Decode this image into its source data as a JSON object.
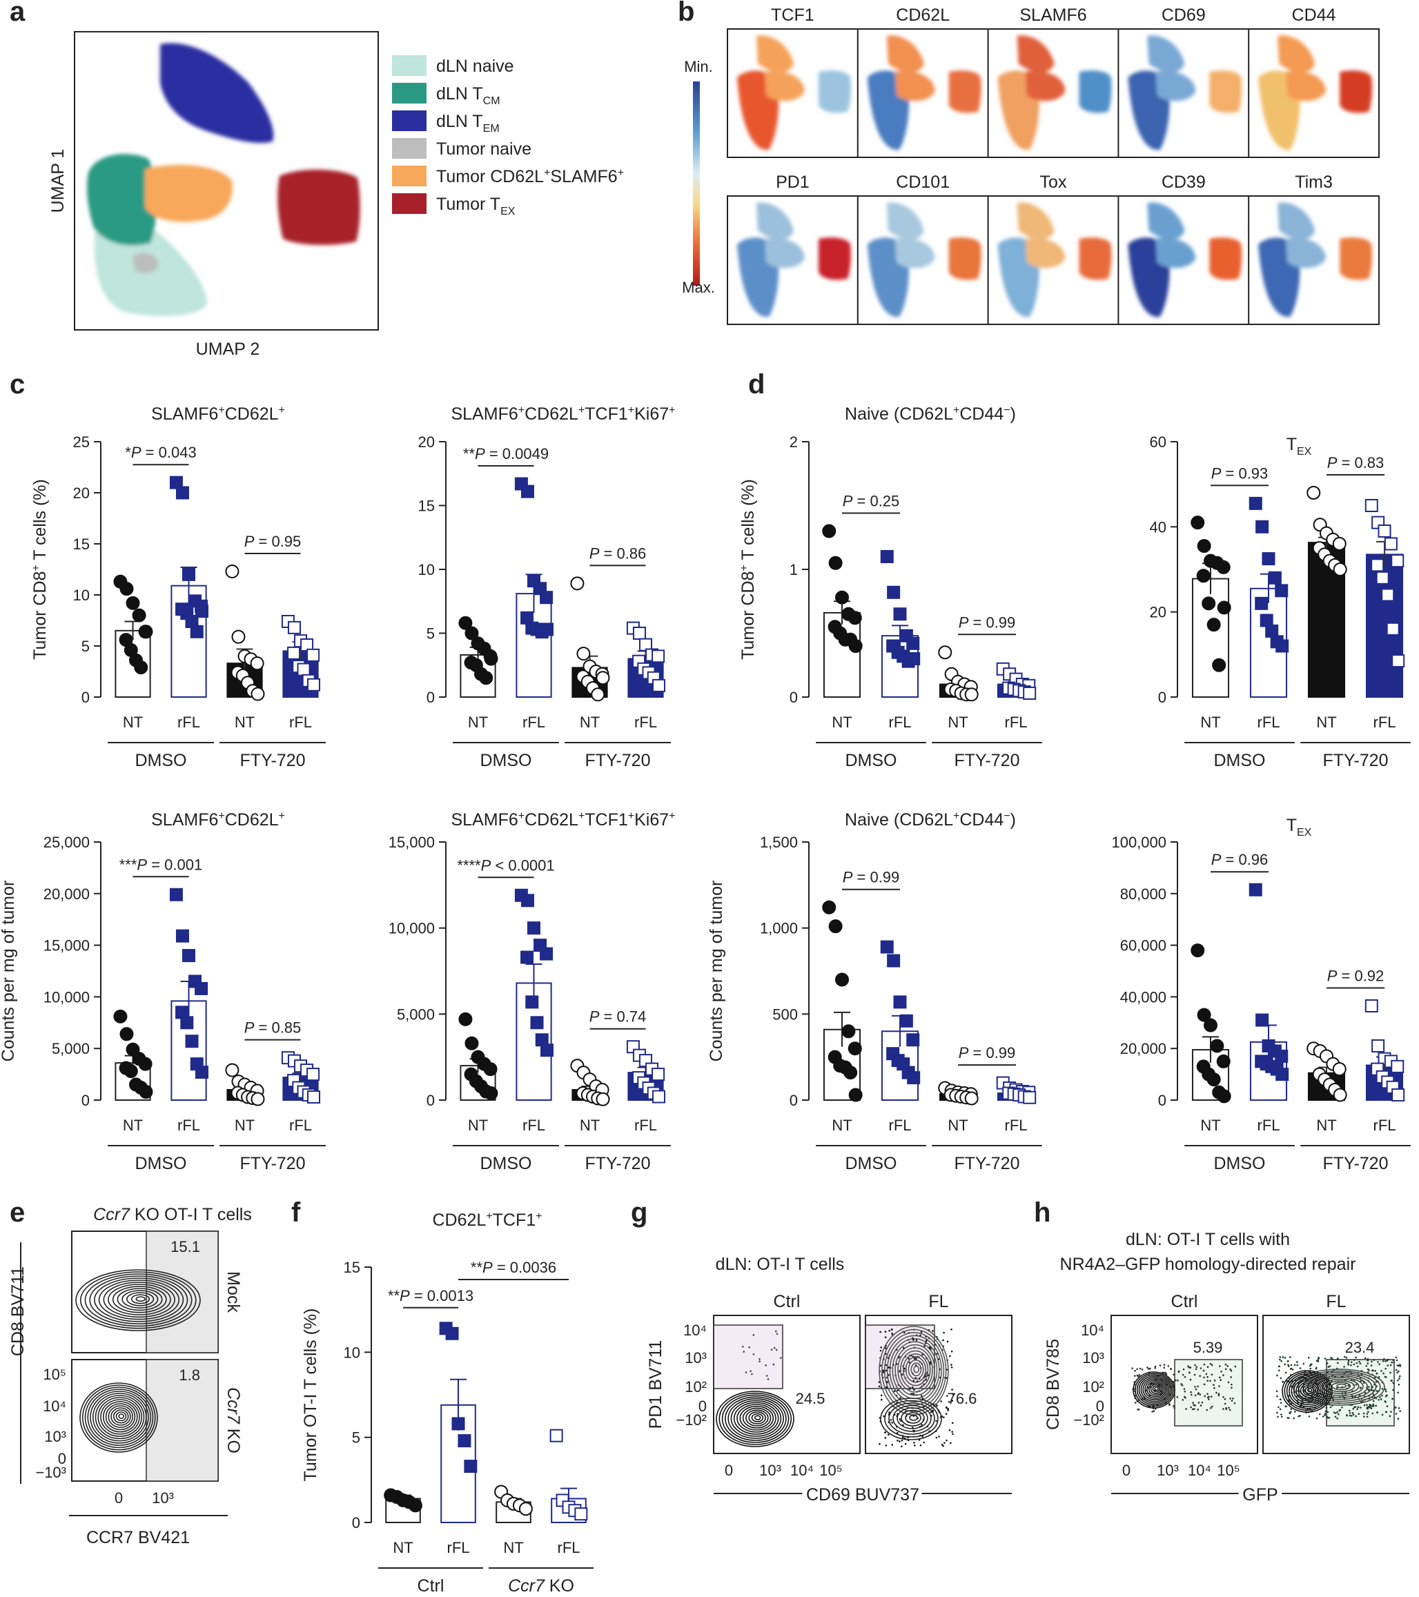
{
  "colors": {
    "dmso_rfl": "#1f2a8a",
    "fty_nt": "#111111",
    "gate_pd1": "#8b2a6b",
    "gate_gfp": "#2a7a55",
    "bar_nt_fill": "#ffffff",
    "bar_rfl_fill": "#ffffff"
  },
  "panel_letters": [
    "a",
    "b",
    "c",
    "d",
    "e",
    "f",
    "g",
    "h"
  ],
  "umap": {
    "ylabel": "UMAP 1",
    "xlabel": "UMAP 2",
    "legend": [
      {
        "label": "dLN naive",
        "color": "#bfe5dd"
      },
      {
        "label": "dLN T",
        "sub": "CM",
        "color": "#2a9a84"
      },
      {
        "label": "dLN T",
        "sub": "EM",
        "color": "#2a2fa0"
      },
      {
        "label": "Tumor naive",
        "color": "#bdbdbd"
      },
      {
        "label": "Tumor CD62L",
        "sup1": "+",
        "mid": "SLAMF6",
        "sup2": "+",
        "color": "#f7a85a"
      },
      {
        "label": "Tumor T",
        "sub": "EX",
        "color": "#a8202a"
      }
    ]
  },
  "heatmaps": {
    "markers_row1": [
      "TCF1",
      "CD62L",
      "SLAMF6",
      "CD69",
      "CD44"
    ],
    "markers_row2": [
      "PD1",
      "CD101",
      "Tox",
      "CD39",
      "Tim3"
    ],
    "scale_min": "Min.",
    "scale_max": "Max."
  },
  "groups": [
    "DMSO",
    "FTY-720"
  ],
  "categories": [
    "NT",
    "rFL",
    "NT",
    "rFL"
  ],
  "chart_data": [
    {
      "type": "bar",
      "id": "c1",
      "title": "SLAMF6",
      "title_sup1": "+",
      "title_mid": "CD62L",
      "title_sup2": "+",
      "ylabel": "Tumor CD8",
      "ylabel_sup": "+",
      "ylabel_tail": " T cells (%)",
      "ylim": [
        0,
        25
      ],
      "yticks": [
        "0",
        "5",
        "10",
        "15",
        "20",
        "25"
      ],
      "means": [
        6.5,
        10.9,
        3.3,
        4.5
      ],
      "sem": [
        0.9,
        1.8,
        1.4,
        0.9
      ],
      "points": [
        [
          11.3,
          10.6,
          9.2,
          8.0,
          6.4,
          5.6,
          4.6,
          3.6,
          2.9,
          6.4
        ],
        [
          21.0,
          20.0,
          12.0,
          9.4,
          8.9,
          8.6,
          8.2,
          7.4,
          6.4,
          8.4
        ],
        [
          12.3,
          5.9,
          4.0,
          3.7,
          3.3,
          2.4,
          2.1,
          1.4,
          0.6,
          0.3
        ],
        [
          7.4,
          6.8,
          5.5,
          5.1,
          4.1,
          4.3,
          3.0,
          2.7,
          1.6,
          1.2
        ]
      ],
      "pvals": [
        {
          "text": "*P = 0.043",
          "pair": [
            0,
            1
          ]
        },
        {
          "text": "P = 0.95",
          "pair": [
            2,
            3
          ]
        }
      ]
    },
    {
      "type": "bar",
      "id": "c2",
      "title": "SLAMF6",
      "title_sup1": "+",
      "title_mid": "CD62L",
      "title_sup2": "+",
      "title_mid2": "TCF1",
      "title_sup3": "+",
      "title_mid3": "Ki67",
      "title_sup4": "+",
      "ylabel": "",
      "ylim": [
        0,
        20
      ],
      "yticks": [
        "0",
        "5",
        "10",
        "15",
        "20"
      ],
      "means": [
        3.3,
        8.1,
        2.3,
        3.0
      ],
      "sem": [
        0.6,
        1.5,
        0.9,
        0.6
      ],
      "points": [
        [
          5.8,
          5.0,
          4.2,
          3.8,
          3.2,
          2.7,
          2.5,
          1.8,
          1.5,
          3.0
        ],
        [
          16.7,
          16.1,
          9.1,
          8.5,
          7.8,
          6.2,
          5.4,
          5.3,
          5.1,
          5.3
        ],
        [
          8.9,
          3.4,
          2.4,
          2.0,
          1.8,
          1.6,
          1.2,
          0.7,
          0.2,
          1.5
        ],
        [
          5.4,
          5.0,
          4.1,
          3.3,
          3.2,
          2.8,
          2.2,
          1.9,
          1.5,
          0.9
        ]
      ],
      "pvals": [
        {
          "text": "**P = 0.0049",
          "pair": [
            0,
            1
          ]
        },
        {
          "text": "P = 0.86",
          "pair": [
            2,
            3
          ]
        }
      ]
    },
    {
      "type": "bar",
      "id": "d1",
      "title": "Naive (CD62L",
      "title_sup1": "+",
      "title_mid": "CD44",
      "title_sup2": "−",
      "title_tail": ")",
      "ylabel": "Tumor CD8",
      "ylabel_sup": "+",
      "ylabel_tail": " T cells (%)",
      "ylim": [
        0,
        2
      ],
      "yticks": [
        "0",
        "1",
        "2"
      ],
      "means": [
        0.66,
        0.48,
        0.1,
        0.1
      ],
      "sem": [
        0.09,
        0.08,
        0.03,
        0.02
      ],
      "points": [
        [
          1.3,
          1.05,
          0.78,
          0.65,
          0.62,
          0.55,
          0.5,
          0.45,
          0.45,
          0.4
        ],
        [
          1.1,
          0.82,
          0.65,
          0.48,
          0.42,
          0.4,
          0.35,
          0.32,
          0.28,
          0.3
        ],
        [
          0.35,
          0.18,
          0.12,
          0.1,
          0.08,
          0.06,
          0.05,
          0.03,
          0.02,
          0.02
        ],
        [
          0.22,
          0.18,
          0.14,
          0.1,
          0.09,
          0.07,
          0.06,
          0.05,
          0.04,
          0.03
        ]
      ],
      "pvals": [
        {
          "text": "P = 0.25",
          "pair": [
            0,
            1
          ]
        },
        {
          "text": "P = 0.99",
          "pair": [
            2,
            3
          ]
        }
      ]
    },
    {
      "type": "bar",
      "id": "d2",
      "title": "T",
      "title_sub": "EX",
      "ylabel": "",
      "ylim": [
        0,
        60
      ],
      "yticks": [
        "0",
        "20",
        "40",
        "60"
      ],
      "means": [
        27.8,
        25.5,
        36.3,
        33.5
      ],
      "sem": [
        3.6,
        3.4,
        1.2,
        3.0
      ],
      "points": [
        [
          41.0,
          35.5,
          32.0,
          31.5,
          30.5,
          28.5,
          22.0,
          17.0,
          7.5,
          21.0
        ],
        [
          45.5,
          40.0,
          32.5,
          28.0,
          25.0,
          22.0,
          18.0,
          15.5,
          13.0,
          12.0
        ],
        [
          48.0,
          40.5,
          38.5,
          37.0,
          36.0,
          35.0,
          33.5,
          32.0,
          31.0,
          30.0
        ],
        [
          45.0,
          41.0,
          39.0,
          36.0,
          32.0,
          31.0,
          28.0,
          24.0,
          16.0,
          8.5
        ]
      ],
      "pvals": [
        {
          "text": "P = 0.93",
          "pair": [
            0,
            1
          ]
        },
        {
          "text": "P = 0.83",
          "pair": [
            2,
            3
          ]
        }
      ]
    },
    {
      "type": "bar",
      "id": "c3",
      "title": "SLAMF6",
      "title_sup1": "+",
      "title_mid": "CD62L",
      "title_sup2": "+",
      "ylabel": "Counts per mg of tumor",
      "ylim": [
        0,
        25000
      ],
      "yticks": [
        "0",
        "5,000",
        "10,000",
        "15,000",
        "20,000",
        "25,000"
      ],
      "means": [
        3600,
        9600,
        1000,
        2200
      ],
      "sem": [
        700,
        1900,
        300,
        400
      ],
      "points": [
        [
          8100,
          6400,
          4900,
          4000,
          3500,
          3100,
          2800,
          1500,
          1200,
          800
        ],
        [
          19900,
          15900,
          14000,
          11500,
          10800,
          8500,
          7500,
          5700,
          3500,
          2700
        ],
        [
          2900,
          1800,
          1500,
          1200,
          900,
          700,
          500,
          300,
          200,
          100
        ],
        [
          4100,
          3800,
          3300,
          2900,
          2500,
          1900,
          1200,
          800,
          500,
          300
        ]
      ],
      "pvals": [
        {
          "text": "***P = 0.001",
          "pair": [
            0,
            1
          ]
        },
        {
          "text": "P = 0.85",
          "pair": [
            2,
            3
          ]
        }
      ]
    },
    {
      "type": "bar",
      "id": "c4",
      "title": "SLAMF6",
      "title_sup1": "+",
      "title_mid": "CD62L",
      "title_sup2": "+",
      "title_mid2": "TCF1",
      "title_sup3": "+",
      "title_mid3": "Ki67",
      "title_sup4": "+",
      "ylabel": "",
      "ylim": [
        0,
        15000
      ],
      "yticks": [
        "0",
        "5,000",
        "10,000",
        "15,000"
      ],
      "means": [
        2000,
        6800,
        600,
        1600
      ],
      "sem": [
        400,
        1100,
        200,
        300
      ],
      "points": [
        [
          4700,
          3300,
          2500,
          2100,
          1800,
          1500,
          1100,
          800,
          500,
          400
        ],
        [
          11900,
          11600,
          10000,
          9000,
          8500,
          8300,
          5700,
          4500,
          3500,
          2900
        ],
        [
          2000,
          1600,
          1200,
          800,
          600,
          400,
          300,
          200,
          100,
          50
        ],
        [
          3100,
          2600,
          2300,
          1800,
          1500,
          1300,
          1000,
          700,
          400,
          200
        ]
      ],
      "pvals": [
        {
          "text": "****P < 0.0001",
          "pair": [
            0,
            1
          ]
        },
        {
          "text": "P = 0.74",
          "pair": [
            2,
            3
          ]
        }
      ]
    },
    {
      "type": "bar",
      "id": "d3",
      "title": "Naive (CD62L",
      "title_sup1": "+",
      "title_mid": "CD44",
      "title_sup2": "−",
      "title_tail": ")",
      "ylabel": "Counts per mg of tumor",
      "ylim": [
        0,
        1500
      ],
      "yticks": [
        "0",
        "500",
        "1,000",
        "1,500"
      ],
      "means": [
        410,
        400,
        35,
        40
      ],
      "sem": [
        100,
        90,
        10,
        10
      ],
      "points": [
        [
          1120,
          1010,
          700,
          400,
          300,
          250,
          200,
          190,
          160,
          30
        ],
        [
          890,
          810,
          570,
          460,
          350,
          270,
          230,
          210,
          160,
          130
        ],
        [
          70,
          55,
          45,
          40,
          35,
          30,
          25,
          20,
          15,
          10
        ],
        [
          100,
          70,
          60,
          50,
          45,
          40,
          35,
          30,
          20,
          15
        ]
      ],
      "pvals": [
        {
          "text": "P = 0.99",
          "pair": [
            0,
            1
          ]
        },
        {
          "text": "P = 0.99",
          "pair": [
            2,
            3
          ]
        }
      ]
    },
    {
      "type": "bar",
      "id": "d4",
      "title": "T",
      "title_sub": "EX",
      "ylabel": "",
      "ylim": [
        0,
        100000
      ],
      "yticks": [
        "0",
        "20,000",
        "40,000",
        "60,000",
        "80,000",
        "100,000"
      ],
      "means": [
        19500,
        22500,
        10500,
        13500
      ],
      "sem": [
        5000,
        6500,
        2200,
        3200
      ],
      "points": [
        [
          58000,
          33000,
          29000,
          21000,
          15000,
          13000,
          10000,
          8000,
          3000,
          1500
        ],
        [
          81500,
          31000,
          21000,
          19000,
          17000,
          15000,
          14000,
          13000,
          12000,
          10000
        ],
        [
          20000,
          19000,
          17000,
          14000,
          12000,
          10000,
          8000,
          6000,
          4000,
          2000
        ],
        [
          36500,
          21000,
          16000,
          15000,
          13000,
          12000,
          9000,
          7000,
          5000,
          2000
        ]
      ],
      "pvals": [
        {
          "text": "P = 0.96",
          "pair": [
            0,
            1
          ]
        },
        {
          "text": "P = 0.92",
          "pair": [
            2,
            3
          ]
        }
      ]
    },
    {
      "type": "bar",
      "id": "f1",
      "title": "CD62L",
      "title_sup1": "+",
      "title_mid": "TCF1",
      "title_sup2": "+",
      "ylabel": "Tumor OT-I T cells (%)",
      "ylim": [
        0,
        15
      ],
      "yticks": [
        "0",
        "5",
        "10",
        "15"
      ],
      "means": [
        1.4,
        6.9,
        1.2,
        1.4
      ],
      "sem": [
        0.2,
        1.5,
        0.2,
        0.6
      ],
      "points": [
        [
          1.6,
          1.5,
          1.3,
          1.2,
          1.0
        ],
        [
          11.4,
          11.1,
          5.8,
          4.8,
          3.3
        ],
        [
          1.8,
          1.3,
          1.1,
          1.0,
          0.8
        ],
        [
          5.1,
          1.3,
          0.9,
          0.7,
          0.5
        ]
      ],
      "pvals": [
        {
          "text": "**P = 0.0013",
          "pair": [
            0,
            1
          ]
        },
        {
          "text": "**P = 0.0036",
          "pair": [
            1,
            3
          ]
        }
      ]
    }
  ],
  "panel_f": {
    "groups": [
      "Ctrl",
      "Ccr7 KO"
    ]
  },
  "panel_e": {
    "title_italic": "Ccr7",
    "title_rest": " KO OT-I T cells",
    "ylabel": "CD8 BV711",
    "xlabel": "CCR7 BV421",
    "row_labels": [
      "Mock",
      "Ccr7 KO"
    ],
    "gate_values": [
      "15.1",
      "1.8"
    ],
    "yticks": [
      "10⁵",
      "10⁴",
      "10³",
      "0",
      "−10³"
    ],
    "xticks": [
      "0",
      "10³"
    ]
  },
  "panel_g": {
    "title": "dLN: OT-I T cells",
    "conditions": [
      "Ctrl",
      "FL"
    ],
    "gate_values": [
      "24.5",
      "76.6"
    ],
    "ylabel": "PD1 BV711",
    "xlabel": "CD69 BUV737",
    "yticks": [
      "10⁴",
      "10³",
      "10²",
      "0",
      "−10²"
    ],
    "xticks": [
      "0",
      "10³",
      "10⁴",
      "10⁵"
    ]
  },
  "panel_h": {
    "title1": "dLN: OT-I T cells with",
    "title2": "NR4A2–GFP homology-directed repair",
    "conditions": [
      "Ctrl",
      "FL"
    ],
    "gate_values": [
      "5.39",
      "23.4"
    ],
    "ylabel": "CD8 BV785",
    "xlabel": "GFP",
    "yticks": [
      "10⁴",
      "10³",
      "10²",
      "0",
      "−10²"
    ],
    "xticks": [
      "0",
      "10³",
      "10⁴",
      "10⁵"
    ]
  }
}
